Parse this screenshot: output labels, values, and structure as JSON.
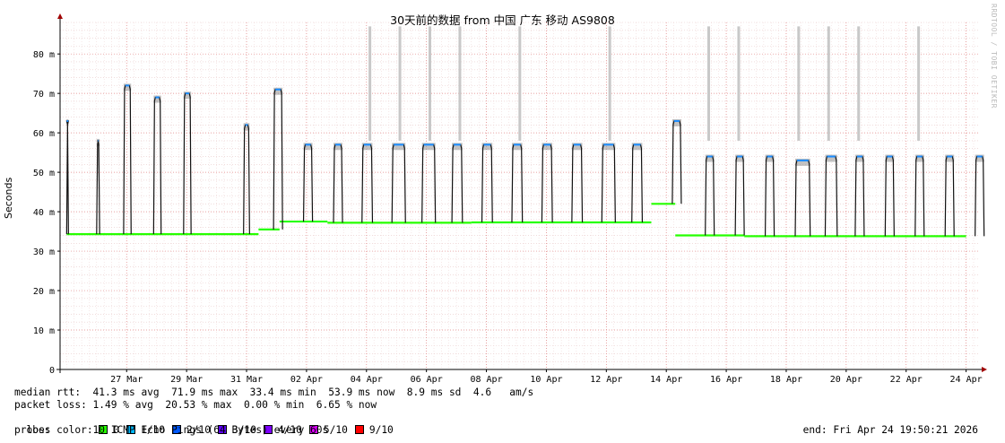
{
  "title": "30天前的数据 from 中国 广东 移动 AS9808",
  "watermark": "RRDTOOL / TOBI OETIKER",
  "chart_data": {
    "type": "line",
    "ylabel": "Seconds",
    "ylim": [
      0,
      88
    ],
    "y_ticks": [
      0,
      10,
      20,
      30,
      40,
      50,
      60,
      70,
      80
    ],
    "y_tick_labels": [
      "0",
      "10 m",
      "20 m",
      "30 m",
      "40 m",
      "50 m",
      "60 m",
      "70 m",
      "80 m"
    ],
    "x_day_range": [
      25,
      55
    ],
    "x_ticks": [
      27,
      29,
      31,
      33,
      35,
      37,
      39,
      41,
      43,
      45,
      47,
      49,
      51,
      53,
      55
    ],
    "x_tick_labels": [
      "27 Mar",
      "29 Mar",
      "31 Mar",
      "02 Apr",
      "04 Apr",
      "06 Apr",
      "08 Apr",
      "10 Apr",
      "12 Apr",
      "14 Apr",
      "16 Apr",
      "18 Apr",
      "20 Apr",
      "22 Apr",
      "24 Apr"
    ],
    "baseline_segments": [
      {
        "from": 25.0,
        "to": 31.4,
        "value": 34.3
      },
      {
        "from": 31.4,
        "to": 32.1,
        "value": 35.5
      },
      {
        "from": 32.1,
        "to": 33.7,
        "value": 37.5
      },
      {
        "from": 33.7,
        "to": 38.5,
        "value": 37.2
      },
      {
        "from": 38.5,
        "to": 44.5,
        "value": 37.3
      },
      {
        "from": 44.5,
        "to": 45.3,
        "value": 42.0
      },
      {
        "from": 45.3,
        "to": 47.6,
        "value": 34.0
      },
      {
        "from": 47.6,
        "to": 55.0,
        "value": 33.8
      }
    ],
    "daily_peaks": [
      {
        "start": 25.0,
        "end": 25.05,
        "value": 63
      },
      {
        "start": 26.0,
        "end": 26.1,
        "value": 58
      },
      {
        "start": 26.9,
        "end": 27.15,
        "value": 72
      },
      {
        "start": 27.9,
        "end": 28.15,
        "value": 69
      },
      {
        "start": 28.9,
        "end": 29.15,
        "value": 70
      },
      {
        "start": 30.9,
        "end": 31.1,
        "value": 62
      },
      {
        "start": 31.9,
        "end": 32.2,
        "value": 71
      },
      {
        "start": 32.9,
        "end": 33.2,
        "value": 57
      },
      {
        "start": 33.9,
        "end": 34.2,
        "value": 57
      },
      {
        "start": 34.85,
        "end": 35.2,
        "value": 57
      },
      {
        "start": 35.85,
        "end": 36.3,
        "value": 57
      },
      {
        "start": 36.85,
        "end": 37.3,
        "value": 57
      },
      {
        "start": 37.85,
        "end": 38.2,
        "value": 57
      },
      {
        "start": 38.85,
        "end": 39.2,
        "value": 57
      },
      {
        "start": 39.85,
        "end": 40.2,
        "value": 57
      },
      {
        "start": 40.85,
        "end": 41.2,
        "value": 57
      },
      {
        "start": 41.85,
        "end": 42.2,
        "value": 57
      },
      {
        "start": 42.85,
        "end": 43.3,
        "value": 57
      },
      {
        "start": 43.85,
        "end": 44.2,
        "value": 57
      },
      {
        "start": 45.2,
        "end": 45.5,
        "value": 63
      },
      {
        "start": 46.3,
        "end": 46.6,
        "value": 54
      },
      {
        "start": 47.3,
        "end": 47.6,
        "value": 54
      },
      {
        "start": 48.3,
        "end": 48.6,
        "value": 54
      },
      {
        "start": 49.3,
        "end": 49.8,
        "value": 53
      },
      {
        "start": 50.3,
        "end": 50.7,
        "value": 54
      },
      {
        "start": 51.3,
        "end": 51.6,
        "value": 54
      },
      {
        "start": 52.3,
        "end": 52.6,
        "value": 54
      },
      {
        "start": 53.3,
        "end": 53.6,
        "value": 54
      },
      {
        "start": 54.3,
        "end": 54.6,
        "value": 54
      },
      {
        "start": 55.3,
        "end": 55.6,
        "value": 54
      }
    ],
    "outage_bars": [
      35.1,
      36.1,
      37.1,
      38.1,
      40.1,
      43.1,
      46.4,
      47.4,
      49.4,
      50.4,
      51.4,
      53.4
    ]
  },
  "legend": {
    "median_rtt": "median rtt:  41.3 ms avg  71.9 ms max  33.4 ms min  53.9 ms now  8.9 ms sd  4.6   am/s",
    "packet_loss": "packet loss: 1.49 % avg  20.53 % max  0.00 % min  6.65 % now",
    "loss_color_label": "loss color:",
    "loss_colors": [
      {
        "label": "0",
        "color": "#26ff00"
      },
      {
        "label": "1/10",
        "color": "#00b8ff"
      },
      {
        "label": "2/10",
        "color": "#0059ff"
      },
      {
        "label": "3/10",
        "color": "#5e00ff"
      },
      {
        "label": "4/10",
        "color": "#7e00ff"
      },
      {
        "label": "5/10",
        "color": "#dd00ff"
      },
      {
        "label": "9/10",
        "color": "#ff0000"
      }
    ],
    "probe": "probe:       10 ICMP Echo Pings (64 Bytes) every 60s",
    "end_time": "end: Fri Apr 24 19:50:21 2026"
  }
}
